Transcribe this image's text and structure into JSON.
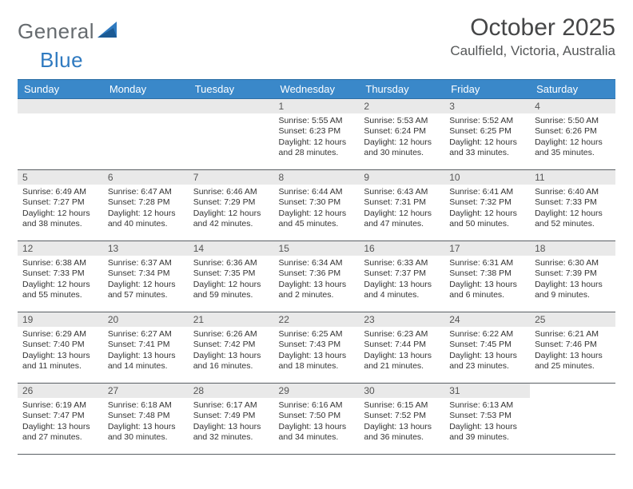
{
  "brand": {
    "word1": "General",
    "word2": "Blue"
  },
  "title": "October 2025",
  "location": "Caulfield, Victoria, Australia",
  "weekdays": [
    "Sunday",
    "Monday",
    "Tuesday",
    "Wednesday",
    "Thursday",
    "Friday",
    "Saturday"
  ],
  "colors": {
    "header_bg": "#3a88c9",
    "header_text": "#ffffff",
    "daynum_bg": "#e9e9e9",
    "rule": "#5a5f64",
    "title_text": "#454647"
  },
  "weeks": [
    [
      null,
      null,
      null,
      {
        "n": "1",
        "sr": "5:55 AM",
        "ss": "6:23 PM",
        "dl1": "Daylight: 12 hours",
        "dl2": "and 28 minutes."
      },
      {
        "n": "2",
        "sr": "5:53 AM",
        "ss": "6:24 PM",
        "dl1": "Daylight: 12 hours",
        "dl2": "and 30 minutes."
      },
      {
        "n": "3",
        "sr": "5:52 AM",
        "ss": "6:25 PM",
        "dl1": "Daylight: 12 hours",
        "dl2": "and 33 minutes."
      },
      {
        "n": "4",
        "sr": "5:50 AM",
        "ss": "6:26 PM",
        "dl1": "Daylight: 12 hours",
        "dl2": "and 35 minutes."
      }
    ],
    [
      {
        "n": "5",
        "sr": "6:49 AM",
        "ss": "7:27 PM",
        "dl1": "Daylight: 12 hours",
        "dl2": "and 38 minutes."
      },
      {
        "n": "6",
        "sr": "6:47 AM",
        "ss": "7:28 PM",
        "dl1": "Daylight: 12 hours",
        "dl2": "and 40 minutes."
      },
      {
        "n": "7",
        "sr": "6:46 AM",
        "ss": "7:29 PM",
        "dl1": "Daylight: 12 hours",
        "dl2": "and 42 minutes."
      },
      {
        "n": "8",
        "sr": "6:44 AM",
        "ss": "7:30 PM",
        "dl1": "Daylight: 12 hours",
        "dl2": "and 45 minutes."
      },
      {
        "n": "9",
        "sr": "6:43 AM",
        "ss": "7:31 PM",
        "dl1": "Daylight: 12 hours",
        "dl2": "and 47 minutes."
      },
      {
        "n": "10",
        "sr": "6:41 AM",
        "ss": "7:32 PM",
        "dl1": "Daylight: 12 hours",
        "dl2": "and 50 minutes."
      },
      {
        "n": "11",
        "sr": "6:40 AM",
        "ss": "7:33 PM",
        "dl1": "Daylight: 12 hours",
        "dl2": "and 52 minutes."
      }
    ],
    [
      {
        "n": "12",
        "sr": "6:38 AM",
        "ss": "7:33 PM",
        "dl1": "Daylight: 12 hours",
        "dl2": "and 55 minutes."
      },
      {
        "n": "13",
        "sr": "6:37 AM",
        "ss": "7:34 PM",
        "dl1": "Daylight: 12 hours",
        "dl2": "and 57 minutes."
      },
      {
        "n": "14",
        "sr": "6:36 AM",
        "ss": "7:35 PM",
        "dl1": "Daylight: 12 hours",
        "dl2": "and 59 minutes."
      },
      {
        "n": "15",
        "sr": "6:34 AM",
        "ss": "7:36 PM",
        "dl1": "Daylight: 13 hours",
        "dl2": "and 2 minutes."
      },
      {
        "n": "16",
        "sr": "6:33 AM",
        "ss": "7:37 PM",
        "dl1": "Daylight: 13 hours",
        "dl2": "and 4 minutes."
      },
      {
        "n": "17",
        "sr": "6:31 AM",
        "ss": "7:38 PM",
        "dl1": "Daylight: 13 hours",
        "dl2": "and 6 minutes."
      },
      {
        "n": "18",
        "sr": "6:30 AM",
        "ss": "7:39 PM",
        "dl1": "Daylight: 13 hours",
        "dl2": "and 9 minutes."
      }
    ],
    [
      {
        "n": "19",
        "sr": "6:29 AM",
        "ss": "7:40 PM",
        "dl1": "Daylight: 13 hours",
        "dl2": "and 11 minutes."
      },
      {
        "n": "20",
        "sr": "6:27 AM",
        "ss": "7:41 PM",
        "dl1": "Daylight: 13 hours",
        "dl2": "and 14 minutes."
      },
      {
        "n": "21",
        "sr": "6:26 AM",
        "ss": "7:42 PM",
        "dl1": "Daylight: 13 hours",
        "dl2": "and 16 minutes."
      },
      {
        "n": "22",
        "sr": "6:25 AM",
        "ss": "7:43 PM",
        "dl1": "Daylight: 13 hours",
        "dl2": "and 18 minutes."
      },
      {
        "n": "23",
        "sr": "6:23 AM",
        "ss": "7:44 PM",
        "dl1": "Daylight: 13 hours",
        "dl2": "and 21 minutes."
      },
      {
        "n": "24",
        "sr": "6:22 AM",
        "ss": "7:45 PM",
        "dl1": "Daylight: 13 hours",
        "dl2": "and 23 minutes."
      },
      {
        "n": "25",
        "sr": "6:21 AM",
        "ss": "7:46 PM",
        "dl1": "Daylight: 13 hours",
        "dl2": "and 25 minutes."
      }
    ],
    [
      {
        "n": "26",
        "sr": "6:19 AM",
        "ss": "7:47 PM",
        "dl1": "Daylight: 13 hours",
        "dl2": "and 27 minutes."
      },
      {
        "n": "27",
        "sr": "6:18 AM",
        "ss": "7:48 PM",
        "dl1": "Daylight: 13 hours",
        "dl2": "and 30 minutes."
      },
      {
        "n": "28",
        "sr": "6:17 AM",
        "ss": "7:49 PM",
        "dl1": "Daylight: 13 hours",
        "dl2": "and 32 minutes."
      },
      {
        "n": "29",
        "sr": "6:16 AM",
        "ss": "7:50 PM",
        "dl1": "Daylight: 13 hours",
        "dl2": "and 34 minutes."
      },
      {
        "n": "30",
        "sr": "6:15 AM",
        "ss": "7:52 PM",
        "dl1": "Daylight: 13 hours",
        "dl2": "and 36 minutes."
      },
      {
        "n": "31",
        "sr": "6:13 AM",
        "ss": "7:53 PM",
        "dl1": "Daylight: 13 hours",
        "dl2": "and 39 minutes."
      },
      null
    ]
  ],
  "labels": {
    "sunrise_prefix": "Sunrise: ",
    "sunset_prefix": "Sunset: "
  }
}
